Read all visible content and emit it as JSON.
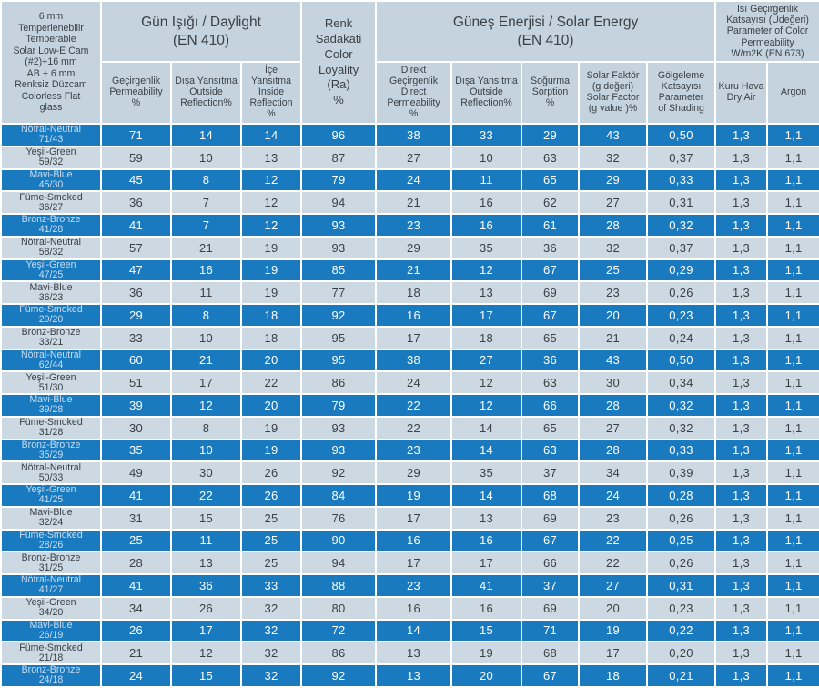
{
  "table": {
    "product_header": "6 mm\nTemperlenebilir\nTemperable\nSolar Low-E Cam\n(#2)+16 mm\nAB + 6 mm\nRenksiz Düzcam\nColorless Flat\nglass",
    "groups": {
      "daylight": "Gün Işığı / Daylight\n(EN 410)",
      "color_loyality": "Renk\nSadakati\nColor\nLoyality\n(Ra)\n%",
      "solar_energy": "Güneş Enerjisi / Solar Energy\n(EN 410)",
      "u_value": "Isı Geçirgenlik\nKatsayısı (Üdeğeri)\nParameter of Color\nPermeability\nW/m2K (EN 673)"
    },
    "subheaders": [
      "Geçirgenlik\nPermeability\n%",
      "Dışa Yansıtma\nOutside\nReflection%",
      "İçe\nYansıtma\nInside\nReflection\n%",
      "Direkt\nGeçirgenlik\nDirect\nPermeability\n%",
      "Dışa Yansıtma\nOutside\nReflection%",
      "Soğurma\nSorption\n%",
      "Solar Faktör\n(g değeri)\nSolar Factor\n(g value )%",
      "Gölgeleme\nKatsayısı\nParameter\nof Shading",
      "Kuru Hava\nDry Air",
      "Argon"
    ],
    "colors": {
      "row_blue": "#1a7abf",
      "row_light": "#ccd8e2",
      "header_bg": "#c5d3de",
      "blue_row_text": "#ffffff",
      "blue_row_label": "#c9ddf1",
      "dark_text": "#3a4147"
    },
    "rows": [
      {
        "name": "Nötral-Neutral",
        "code": "71/43",
        "values": [
          "71",
          "14",
          "14",
          "96",
          "38",
          "33",
          "29",
          "43",
          "0,50",
          "1,3",
          "1,1"
        ]
      },
      {
        "name": "Yeşil-Green",
        "code": "59/32",
        "values": [
          "59",
          "10",
          "13",
          "87",
          "27",
          "10",
          "63",
          "32",
          "0,37",
          "1,3",
          "1,1"
        ]
      },
      {
        "name": "Mavi-Blue",
        "code": "45/30",
        "values": [
          "45",
          "8",
          "12",
          "79",
          "24",
          "11",
          "65",
          "29",
          "0,33",
          "1,3",
          "1,1"
        ]
      },
      {
        "name": "Füme-Smoked",
        "code": "36/27",
        "values": [
          "36",
          "7",
          "12",
          "94",
          "21",
          "16",
          "62",
          "27",
          "0,31",
          "1,3",
          "1,1"
        ]
      },
      {
        "name": "Bronz-Bronze",
        "code": "41/28",
        "values": [
          "41",
          "7",
          "12",
          "93",
          "23",
          "16",
          "61",
          "28",
          "0,32",
          "1,3",
          "1,1"
        ]
      },
      {
        "name": "Nötral-Neutral",
        "code": "58/32",
        "values": [
          "57",
          "21",
          "19",
          "93",
          "29",
          "35",
          "36",
          "32",
          "0,37",
          "1,3",
          "1,1"
        ]
      },
      {
        "name": "Yeşil-Green",
        "code": "47/25",
        "values": [
          "47",
          "16",
          "19",
          "85",
          "21",
          "12",
          "67",
          "25",
          "0,29",
          "1,3",
          "1,1"
        ]
      },
      {
        "name": "Mavi-Blue",
        "code": "36/23",
        "values": [
          "36",
          "11",
          "19",
          "77",
          "18",
          "13",
          "69",
          "23",
          "0,26",
          "1,3",
          "1,1"
        ]
      },
      {
        "name": "Füme-Smoked",
        "code": "29/20",
        "values": [
          "29",
          "8",
          "18",
          "92",
          "16",
          "17",
          "67",
          "20",
          "0,23",
          "1,3",
          "1,1"
        ]
      },
      {
        "name": "Bronz-Bronze",
        "code": "33/21",
        "values": [
          "33",
          "10",
          "18",
          "95",
          "17",
          "18",
          "65",
          "21",
          "0,24",
          "1,3",
          "1,1"
        ]
      },
      {
        "name": "Nötral-Neutral",
        "code": "62/44",
        "values": [
          "60",
          "21",
          "20",
          "95",
          "38",
          "27",
          "36",
          "43",
          "0,50",
          "1,3",
          "1,1"
        ]
      },
      {
        "name": "Yeşil-Green",
        "code": "51/30",
        "values": [
          "51",
          "17",
          "22",
          "86",
          "24",
          "12",
          "63",
          "30",
          "0,34",
          "1,3",
          "1,1"
        ]
      },
      {
        "name": "Mavi-Blue",
        "code": "39/28",
        "values": [
          "39",
          "12",
          "20",
          "79",
          "22",
          "12",
          "66",
          "28",
          "0,32",
          "1,3",
          "1,1"
        ]
      },
      {
        "name": "Füme-Smoked",
        "code": "31/28",
        "values": [
          "30",
          "8",
          "19",
          "93",
          "22",
          "14",
          "65",
          "27",
          "0,32",
          "1,3",
          "1,1"
        ]
      },
      {
        "name": "Bronz-Bronze",
        "code": "35/29",
        "values": [
          "35",
          "10",
          "19",
          "93",
          "23",
          "14",
          "63",
          "28",
          "0,33",
          "1,3",
          "1,1"
        ]
      },
      {
        "name": "Nötral-Neutral",
        "code": "50/33",
        "values": [
          "49",
          "30",
          "26",
          "92",
          "29",
          "35",
          "37",
          "34",
          "0,39",
          "1,3",
          "1,1"
        ]
      },
      {
        "name": "Yeşil-Green",
        "code": "41/25",
        "values": [
          "41",
          "22",
          "26",
          "84",
          "19",
          "14",
          "68",
          "24",
          "0,28",
          "1,3",
          "1,1"
        ]
      },
      {
        "name": "Mavi-Blue",
        "code": "32/24",
        "values": [
          "31",
          "15",
          "25",
          "76",
          "17",
          "13",
          "69",
          "23",
          "0,26",
          "1,3",
          "1,1"
        ]
      },
      {
        "name": "Füme-Smoked",
        "code": "28/26",
        "values": [
          "25",
          "11",
          "25",
          "90",
          "16",
          "16",
          "67",
          "22",
          "0,25",
          "1,3",
          "1,1"
        ]
      },
      {
        "name": "Bronz-Bronze",
        "code": "31/25",
        "values": [
          "28",
          "13",
          "25",
          "94",
          "17",
          "17",
          "66",
          "22",
          "0,26",
          "1,3",
          "1,1"
        ]
      },
      {
        "name": "Nötral-Neutral",
        "code": "41/27",
        "values": [
          "41",
          "36",
          "33",
          "88",
          "23",
          "41",
          "37",
          "27",
          "0,31",
          "1,3",
          "1,1"
        ]
      },
      {
        "name": "Yeşil-Green",
        "code": "34/20",
        "values": [
          "34",
          "26",
          "32",
          "80",
          "16",
          "16",
          "69",
          "20",
          "0,23",
          "1,3",
          "1,1"
        ]
      },
      {
        "name": "Mavi-Blue",
        "code": "26/19",
        "values": [
          "26",
          "17",
          "32",
          "72",
          "14",
          "15",
          "71",
          "19",
          "0,22",
          "1,3",
          "1,1"
        ]
      },
      {
        "name": "Füme-Smoked",
        "code": "21/18",
        "values": [
          "21",
          "12",
          "32",
          "86",
          "13",
          "19",
          "68",
          "17",
          "0,20",
          "1,3",
          "1,1"
        ]
      },
      {
        "name": "Bronz-Bronze",
        "code": "24/18",
        "values": [
          "24",
          "15",
          "32",
          "92",
          "13",
          "20",
          "67",
          "18",
          "0,21",
          "1,3",
          "1,1"
        ]
      }
    ]
  }
}
